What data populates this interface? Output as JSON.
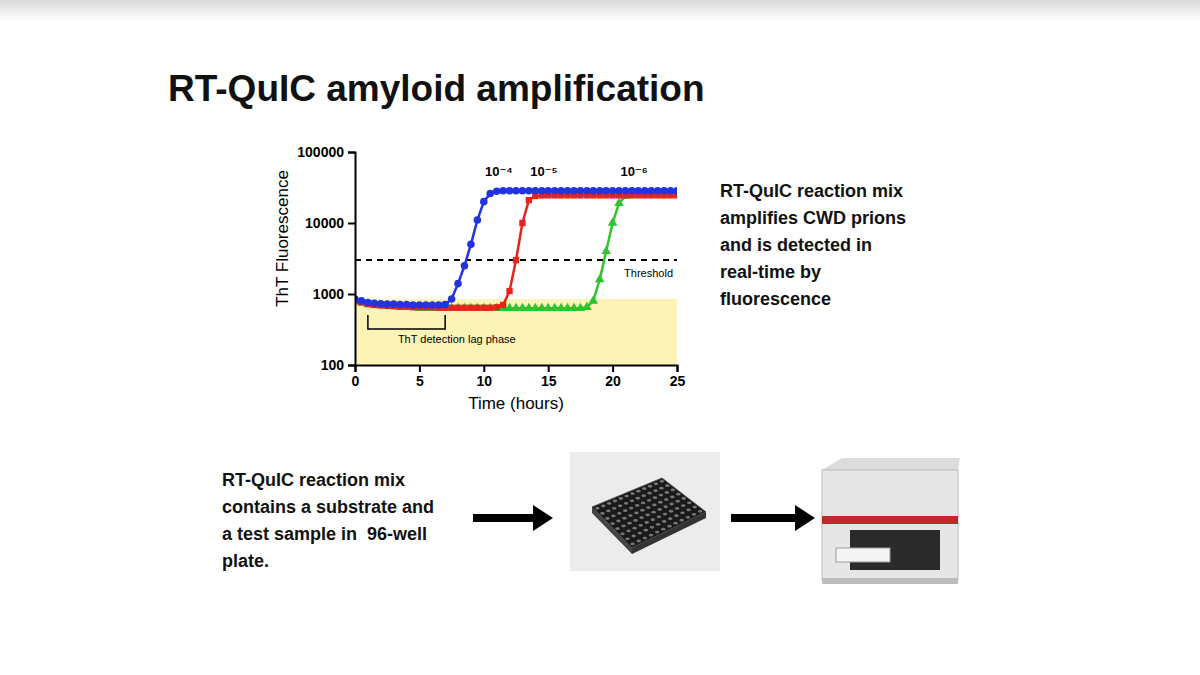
{
  "slide": {
    "title": "RT-QuIC amyloid amplification",
    "caption_lines": [
      "RT-QuIC reaction mix",
      "amplifies CWD prions",
      "and is detected in",
      "real-time by",
      "fluorescence"
    ],
    "step_lines": [
      "RT-QuIC reaction mix",
      "contains a substrate and",
      "a test sample in  96-well",
      "plate."
    ]
  },
  "chart_data": {
    "type": "line",
    "log": "y",
    "x_label": "Time (hours)",
    "y_label": "ThT Fluorescence",
    "xlim": [
      0,
      25
    ],
    "xticks": [
      0,
      5,
      10,
      15,
      20,
      25
    ],
    "ylim": [
      100,
      100000
    ],
    "yticks": [
      100,
      1000,
      10000,
      100000
    ],
    "threshold": {
      "value": 3000,
      "label": "Threshold"
    },
    "shaded_band": [
      100,
      850
    ],
    "lag_phase": {
      "from": 1,
      "to": 7,
      "label": "ThT detection lag phase"
    },
    "x": [
      0,
      0.5,
      1,
      1.5,
      2,
      2.5,
      3,
      3.5,
      4,
      4.5,
      5,
      5.5,
      6,
      6.5,
      7,
      7.5,
      8,
      8.5,
      9,
      9.5,
      10,
      10.5,
      11,
      11.5,
      12,
      12.5,
      13,
      13.5,
      14,
      14.5,
      15,
      15.5,
      16,
      16.5,
      17,
      17.5,
      18,
      18.5,
      19,
      19.5,
      20,
      20.5,
      21,
      21.5,
      22,
      22.5,
      23,
      23.5,
      24,
      24.5,
      25
    ],
    "series": [
      {
        "name": "10⁻⁶",
        "color": "#2ec42e",
        "marker": "triangle",
        "values": [
          800,
          760,
          720,
          700,
          690,
          680,
          670,
          660,
          650,
          650,
          630,
          630,
          630,
          630,
          630,
          630,
          630,
          630,
          630,
          630,
          630,
          630,
          630,
          630,
          630,
          630,
          630,
          630,
          630,
          630,
          630,
          630,
          630,
          630,
          630,
          630,
          650,
          800,
          1600,
          4000,
          10000,
          19000,
          24000,
          25000,
          25000,
          25000,
          25000,
          25000,
          25000,
          25000,
          25000
        ]
      },
      {
        "name": "10⁻⁵",
        "color": "#e8231a",
        "marker": "square",
        "values": [
          800,
          760,
          720,
          700,
          690,
          680,
          670,
          660,
          660,
          650,
          650,
          650,
          650,
          640,
          640,
          640,
          640,
          640,
          640,
          640,
          640,
          640,
          650,
          700,
          1100,
          3000,
          10000,
          21000,
          24000,
          24500,
          24500,
          24500,
          24500,
          24500,
          24500,
          24500,
          24500,
          24500,
          24500,
          24500,
          24500,
          24500,
          24500,
          24500,
          24500,
          24500,
          24500,
          24500,
          24500,
          24500,
          24500
        ]
      },
      {
        "name": "10⁻⁴",
        "color": "#2233e0",
        "marker": "circle",
        "values": [
          850,
          800,
          760,
          740,
          730,
          720,
          720,
          710,
          710,
          700,
          700,
          700,
          700,
          700,
          710,
          850,
          1400,
          2500,
          5000,
          11000,
          20000,
          26000,
          28000,
          28500,
          28500,
          28500,
          28500,
          28500,
          28500,
          28500,
          28500,
          28500,
          28500,
          28500,
          28500,
          28500,
          28500,
          28500,
          28500,
          28500,
          28500,
          28500,
          28500,
          28500,
          28500,
          28500,
          28500,
          28500,
          28500,
          28500,
          28500
        ]
      }
    ]
  }
}
